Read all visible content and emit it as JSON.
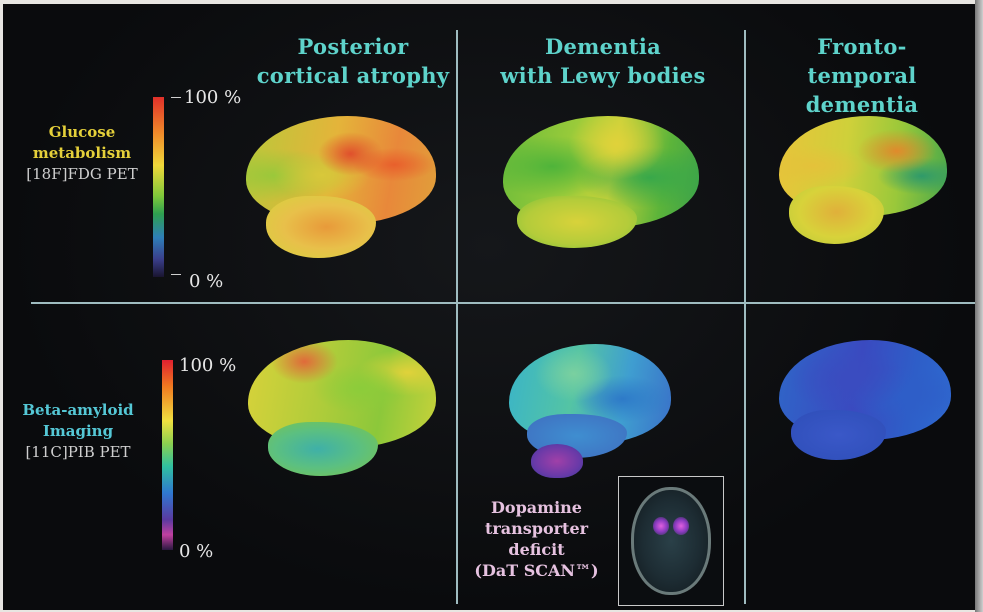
{
  "columns": [
    {
      "line1": "Posterior",
      "line2": "cortical atrophy"
    },
    {
      "line1": "Dementia",
      "line2": "with Lewy bodies"
    },
    {
      "line1": "Fronto-",
      "line2": "temporal dementia"
    }
  ],
  "rows": [
    {
      "line1": "Glucose",
      "line2": "metabolism",
      "line3": "[18F]FDG PET",
      "scale_max": "100 %",
      "scale_min": "0 %"
    },
    {
      "line1": "Beta-amyloid",
      "line2": "Imaging",
      "line3": "[11C]PIB PET",
      "scale_max": "100 %",
      "scale_min": "0 %"
    }
  ],
  "inset": {
    "line1": "Dopamine",
    "line2": "transporter",
    "line3": "deficit",
    "line4": "(DaT SCAN™)"
  },
  "colors": {
    "header": "#5ed3cb",
    "row1_label": "#e5d03a",
    "row2_label": "#55c8d6",
    "inset_label": "#e6c2e0",
    "divider": "#9fbcc0"
  }
}
